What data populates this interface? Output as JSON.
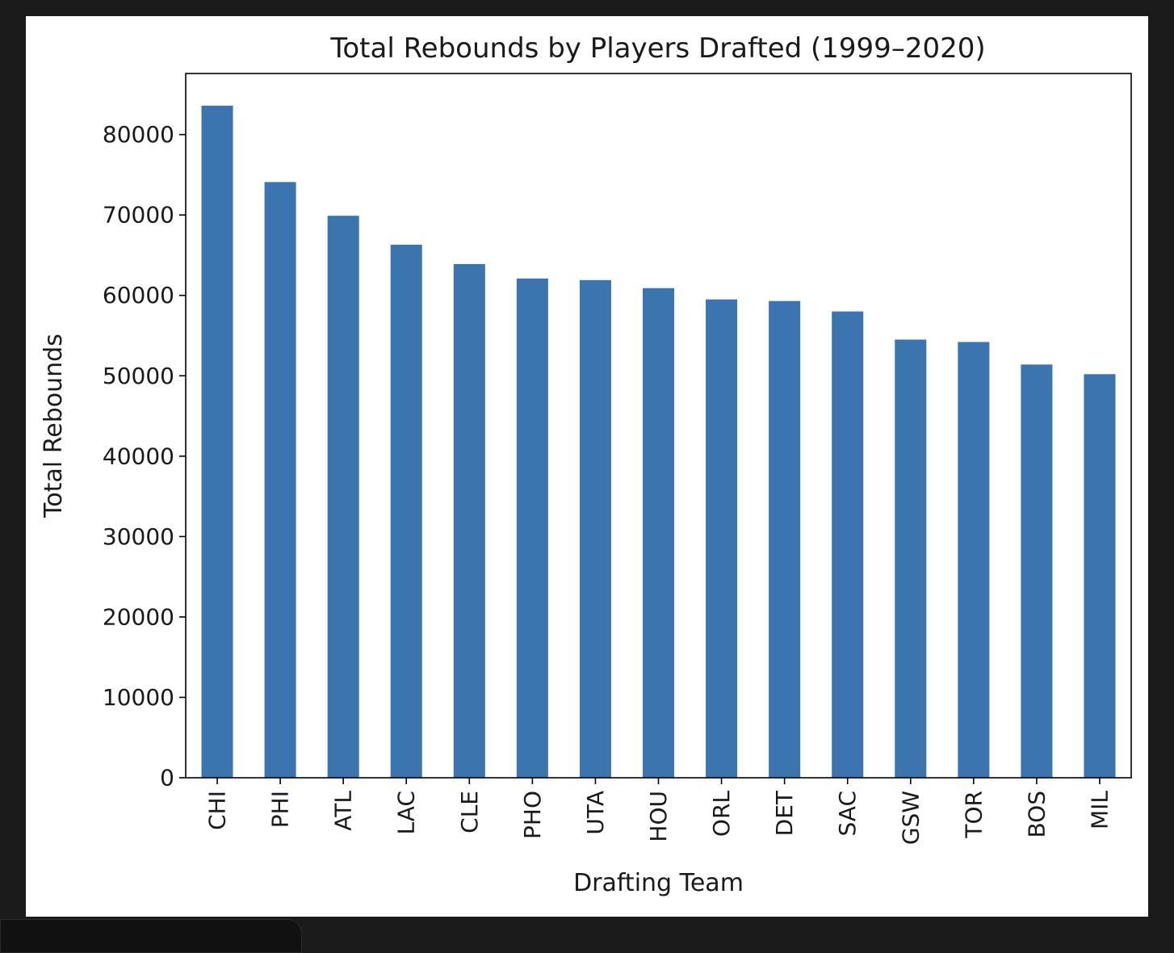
{
  "chart_data": {
    "type": "bar",
    "title": "Total Rebounds by Players Drafted (1999–2020)",
    "xlabel": "Drafting Team",
    "ylabel": "Total Rebounds",
    "categories": [
      "CHI",
      "PHI",
      "ATL",
      "LAC",
      "CLE",
      "PHO",
      "UTA",
      "HOU",
      "ORL",
      "DET",
      "SAC",
      "GSW",
      "TOR",
      "BOS",
      "MIL"
    ],
    "values": [
      83600,
      74100,
      69900,
      66300,
      63900,
      62100,
      61900,
      60900,
      59500,
      59300,
      58000,
      54500,
      54200,
      51400,
      50200
    ],
    "ylim": [
      0,
      87600
    ],
    "yticks": [
      0,
      10000,
      20000,
      30000,
      40000,
      50000,
      60000,
      70000,
      80000
    ],
    "ytick_labels": [
      "0",
      "10000",
      "20000",
      "30000",
      "40000",
      "50000",
      "60000",
      "70000",
      "80000"
    ],
    "bar_color": "#3b74af",
    "grid": false,
    "legend": "none"
  }
}
